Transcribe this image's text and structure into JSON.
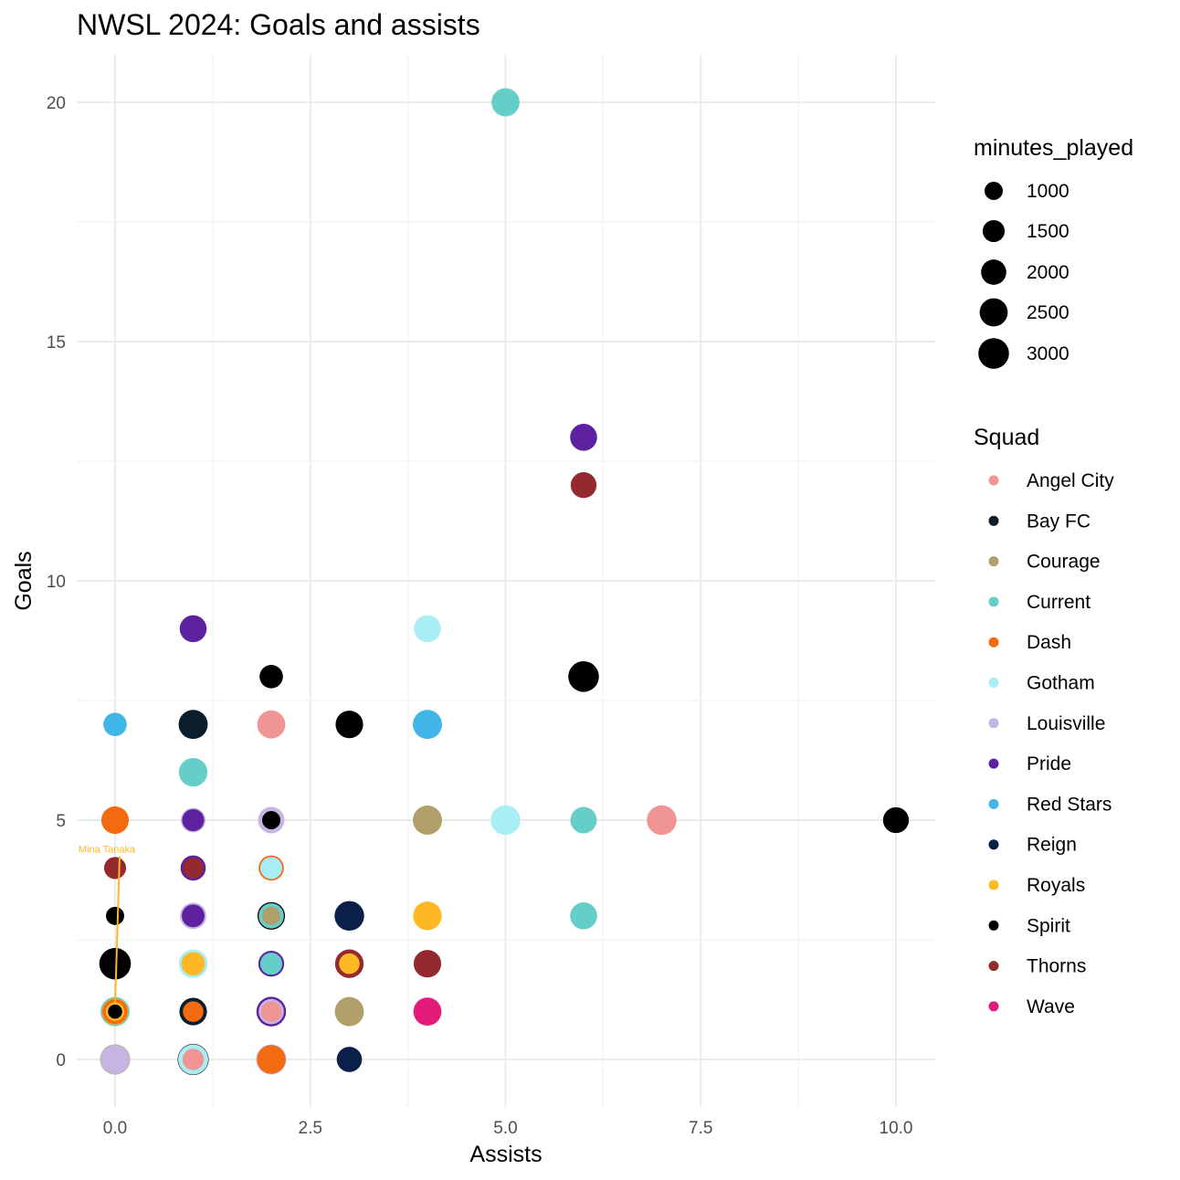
{
  "chart_data": {
    "type": "scatter",
    "title": "NWSL 2024: Goals and assists",
    "xlabel": "Assists",
    "ylabel": "Goals",
    "xlim": [
      -0.6,
      10.5
    ],
    "ylim": [
      -1.0,
      21.0
    ],
    "xticks": [
      0,
      2.5,
      5,
      7.5,
      10
    ],
    "xtick_labels": [
      "0.0",
      "2.5",
      "5.0",
      "7.5",
      "10.0"
    ],
    "yticks": [
      0,
      5,
      10,
      15,
      20
    ],
    "ytick_labels": [
      "0",
      "5",
      "10",
      "15",
      "20"
    ],
    "grid": true,
    "size_legend": {
      "title": "minutes_played",
      "values": [
        1000,
        1500,
        2000,
        2500,
        3000
      ],
      "labels": [
        "1000",
        "1500",
        "2000",
        "2500",
        "3000"
      ]
    },
    "color_legend": {
      "title": "Squad",
      "items": [
        {
          "label": "Angel City",
          "color": "#F09494"
        },
        {
          "label": "Bay FC",
          "color": "#0A1E2D"
        },
        {
          "label": "Courage",
          "color": "#B09E6B"
        },
        {
          "label": "Current",
          "color": "#65CEC8"
        },
        {
          "label": "Dash",
          "color": "#F46A10"
        },
        {
          "label": "Gotham",
          "color": "#A9EDF5"
        },
        {
          "label": "Louisville",
          "color": "#C6B4E2"
        },
        {
          "label": "Pride",
          "color": "#5E22A0"
        },
        {
          "label": "Red Stars",
          "color": "#41B6E6"
        },
        {
          "label": "Reign",
          "color": "#0B1F4B"
        },
        {
          "label": "Royals",
          "color": "#FDB823"
        },
        {
          "label": "Spirit",
          "color": "#000000"
        },
        {
          "label": "Thorns",
          "color": "#952930"
        },
        {
          "label": "Wave",
          "color": "#E31C79"
        }
      ]
    },
    "points": [
      {
        "assists": 5,
        "goals": 20,
        "squad": "Current",
        "minutes": 2500
      },
      {
        "assists": 6,
        "goals": 13,
        "squad": "Pride",
        "minutes": 2300
      },
      {
        "assists": 6,
        "goals": 12,
        "squad": "Thorns",
        "minutes": 2100
      },
      {
        "assists": 1,
        "goals": 9,
        "squad": "Pride",
        "minutes": 2300
      },
      {
        "assists": 4,
        "goals": 9,
        "squad": "Gotham",
        "minutes": 2300
      },
      {
        "assists": 2,
        "goals": 8,
        "squad": "Spirit",
        "minutes": 1700
      },
      {
        "assists": 6,
        "goals": 8,
        "squad": "Spirit",
        "minutes": 3000
      },
      {
        "assists": 0,
        "goals": 7,
        "squad": "Red Stars",
        "minutes": 1700
      },
      {
        "assists": 1,
        "goals": 7,
        "squad": "Bay FC",
        "minutes": 2700
      },
      {
        "assists": 2,
        "goals": 7,
        "squad": "Angel City",
        "minutes": 2500
      },
      {
        "assists": 3,
        "goals": 7,
        "squad": "Spirit",
        "minutes": 2400
      },
      {
        "assists": 4,
        "goals": 7,
        "squad": "Red Stars",
        "minutes": 2700
      },
      {
        "assists": 1,
        "goals": 6,
        "squad": "Current",
        "minutes": 2600
      },
      {
        "assists": 0,
        "goals": 5,
        "squad": "Dash",
        "minutes": 2400
      },
      {
        "assists": 1,
        "goals": 5,
        "squad": "Louisville",
        "minutes": 1900
      },
      {
        "assists": 1,
        "goals": 5,
        "squad": "Pride",
        "minutes": 1500
      },
      {
        "assists": 2,
        "goals": 5,
        "squad": "Louisville",
        "minutes": 2200
      },
      {
        "assists": 2,
        "goals": 5,
        "squad": "Spirit",
        "minutes": 1000
      },
      {
        "assists": 4,
        "goals": 5,
        "squad": "Courage",
        "minutes": 2700
      },
      {
        "assists": 5,
        "goals": 5,
        "squad": "Gotham",
        "minutes": 2800
      },
      {
        "assists": 6,
        "goals": 5,
        "squad": "Current",
        "minutes": 2200
      },
      {
        "assists": 7,
        "goals": 5,
        "squad": "Angel City",
        "minutes": 2800
      },
      {
        "assists": 10,
        "goals": 5,
        "squad": "Spirit",
        "minutes": 2100
      },
      {
        "assists": 0,
        "goals": 4,
        "squad": "Thorns",
        "minutes": 1500
      },
      {
        "assists": 1,
        "goals": 4,
        "squad": "Pride",
        "minutes": 2000
      },
      {
        "assists": 1,
        "goals": 4,
        "squad": "Thorns",
        "minutes": 1300
      },
      {
        "assists": 2,
        "goals": 4,
        "squad": "Dash",
        "minutes": 2000
      },
      {
        "assists": 2,
        "goals": 4,
        "squad": "Gotham",
        "minutes": 1500
      },
      {
        "assists": 0,
        "goals": 3,
        "squad": "Spirit",
        "minutes": 1000
      },
      {
        "assists": 1,
        "goals": 3,
        "squad": "Louisville",
        "minutes": 2200
      },
      {
        "assists": 1,
        "goals": 3,
        "squad": "Pride",
        "minutes": 1600
      },
      {
        "assists": 2,
        "goals": 3,
        "squad": "Spirit",
        "minutes": 2400
      },
      {
        "assists": 2,
        "goals": 3,
        "squad": "Current",
        "minutes": 2000
      },
      {
        "assists": 2,
        "goals": 3,
        "squad": "Courage",
        "minutes": 1000
      },
      {
        "assists": 3,
        "goals": 3,
        "squad": "Reign",
        "minutes": 2800
      },
      {
        "assists": 4,
        "goals": 3,
        "squad": "Royals",
        "minutes": 2600
      },
      {
        "assists": 6,
        "goals": 3,
        "squad": "Current",
        "minutes": 2300
      },
      {
        "assists": 0,
        "goals": 2,
        "squad": "Spirit",
        "minutes": 3200
      },
      {
        "assists": 1,
        "goals": 2,
        "squad": "Gotham",
        "minutes": 2600
      },
      {
        "assists": 1,
        "goals": 2,
        "squad": "Royals",
        "minutes": 1700
      },
      {
        "assists": 2,
        "goals": 2,
        "squad": "Pride",
        "minutes": 2100
      },
      {
        "assists": 2,
        "goals": 2,
        "squad": "Current",
        "minutes": 1500
      },
      {
        "assists": 3,
        "goals": 2,
        "squad": "Thorns",
        "minutes": 2600
      },
      {
        "assists": 3,
        "goals": 2,
        "squad": "Royals",
        "minutes": 1300
      },
      {
        "assists": 4,
        "goals": 2,
        "squad": "Thorns",
        "minutes": 2400
      },
      {
        "assists": 0,
        "goals": 1,
        "squad": "Current",
        "minutes": 2700
      },
      {
        "assists": 0,
        "goals": 1,
        "squad": "Royals",
        "minutes": 2200
      },
      {
        "assists": 0,
        "goals": 1,
        "squad": "Dash",
        "minutes": 2000
      },
      {
        "assists": 0,
        "goals": 1,
        "squad": "Spirit",
        "minutes": 1000
      },
      {
        "assists": 1,
        "goals": 1,
        "squad": "Bay FC",
        "minutes": 2400
      },
      {
        "assists": 1,
        "goals": 1,
        "squad": "Dash",
        "minutes": 1300
      },
      {
        "assists": 2,
        "goals": 1,
        "squad": "Pride",
        "minutes": 2800
      },
      {
        "assists": 2,
        "goals": 1,
        "squad": "Louisville",
        "minutes": 2000
      },
      {
        "assists": 2,
        "goals": 1,
        "squad": "Angel City",
        "minutes": 1300
      },
      {
        "assists": 3,
        "goals": 1,
        "squad": "Courage",
        "minutes": 2700
      },
      {
        "assists": 4,
        "goals": 1,
        "squad": "Wave",
        "minutes": 2500
      },
      {
        "assists": 0,
        "goals": 0,
        "squad": "Courage",
        "minutes": 2900
      },
      {
        "assists": 0,
        "goals": 0,
        "squad": "Louisville",
        "minutes": 2700
      },
      {
        "assists": 1,
        "goals": 0,
        "squad": "Spirit",
        "minutes": 3100
      },
      {
        "assists": 1,
        "goals": 0,
        "squad": "Gotham",
        "minutes": 2900
      },
      {
        "assists": 1,
        "goals": 0,
        "squad": "Angel City",
        "minutes": 1400
      },
      {
        "assists": 2,
        "goals": 0,
        "squad": "Louisville",
        "minutes": 2900
      },
      {
        "assists": 2,
        "goals": 0,
        "squad": "Dash",
        "minutes": 2600
      },
      {
        "assists": 3,
        "goals": 0,
        "squad": "Reign",
        "minutes": 2000
      }
    ],
    "annotations": [
      {
        "text": "Mina Tanaka",
        "assists": 0,
        "goals": 1,
        "label_assists": 0.0,
        "label_goals": 4.4,
        "color": "#FDB823"
      }
    ]
  }
}
